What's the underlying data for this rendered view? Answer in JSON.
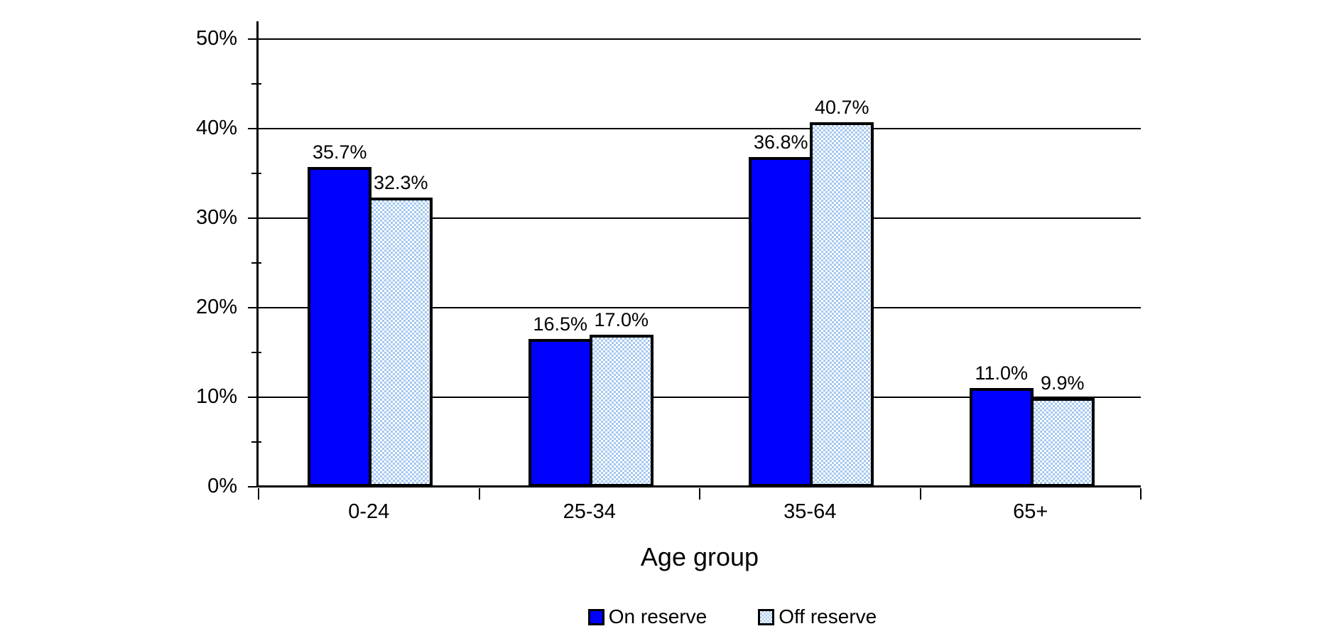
{
  "chart_data": {
    "type": "bar",
    "categories": [
      "0-24",
      "25-34",
      "35-64",
      "65+"
    ],
    "series": [
      {
        "name": "On reserve",
        "values": [
          35.7,
          16.5,
          36.8,
          11.0
        ],
        "fill": "solid",
        "color": "#0000FF"
      },
      {
        "name": "Off reserve",
        "values": [
          32.3,
          17.0,
          40.7,
          9.9
        ],
        "fill": "checker",
        "color": "#A4C8F0"
      }
    ],
    "value_labels": [
      [
        "35.7%",
        "16.5%",
        "36.8%",
        "11.0%"
      ],
      [
        "32.3%",
        "17.0%",
        "40.7%",
        "9.9%"
      ]
    ],
    "title": "",
    "xlabel": "Age group",
    "ylabel": "",
    "ylim": [
      0,
      50
    ],
    "y_major_step": 10,
    "y_minor_step": 5,
    "ytick_labels": [
      "0%",
      "10%",
      "20%",
      "30%",
      "40%",
      "50%"
    ],
    "grid": "horizontal-major",
    "legend_position": "bottom"
  },
  "colors": {
    "background": "#FFFFFF",
    "axis_and_grid": "#000000",
    "bar_border": "#000000",
    "text": "#000000",
    "on_reserve_fill": "#0000FF",
    "off_reserve_pattern_blue": "#A4C8F0",
    "off_reserve_pattern_base": "#FFFFFF"
  }
}
